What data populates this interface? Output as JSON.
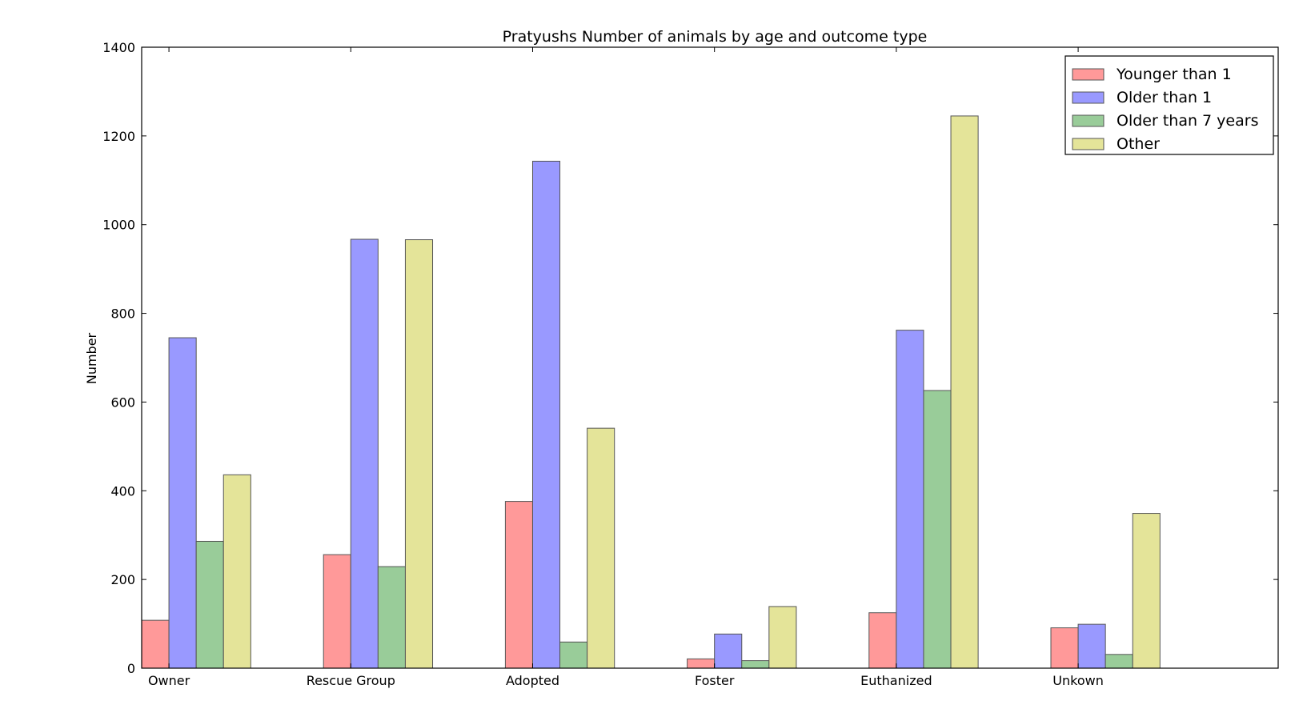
{
  "chart_data": {
    "type": "bar",
    "title": "Pratyushs Number of animals by age and outcome type",
    "xlabel": "",
    "ylabel": "Number",
    "categories": [
      "Owner",
      "Rescue Group",
      "Adopted",
      "Foster",
      "Euthanized",
      "Unkown"
    ],
    "series": [
      {
        "name": "Younger than 1",
        "color": "#ff9999",
        "values": [
          108,
          256,
          376,
          21,
          125,
          91
        ]
      },
      {
        "name": "Older than 1",
        "color": "#9999ff",
        "values": [
          745,
          967,
          1143,
          77,
          762,
          99
        ]
      },
      {
        "name": "Older than 7 years",
        "color": "#99cc99",
        "values": [
          286,
          229,
          59,
          17,
          626,
          31
        ]
      },
      {
        "name": "Other",
        "color": "#e4e499",
        "values": [
          436,
          966,
          541,
          139,
          1245,
          349
        ]
      }
    ],
    "ylim": [
      0,
      1400
    ],
    "yticks": [
      0,
      200,
      400,
      600,
      800,
      1000,
      1200,
      1400
    ],
    "grid": false,
    "legend_position": "top-right"
  }
}
